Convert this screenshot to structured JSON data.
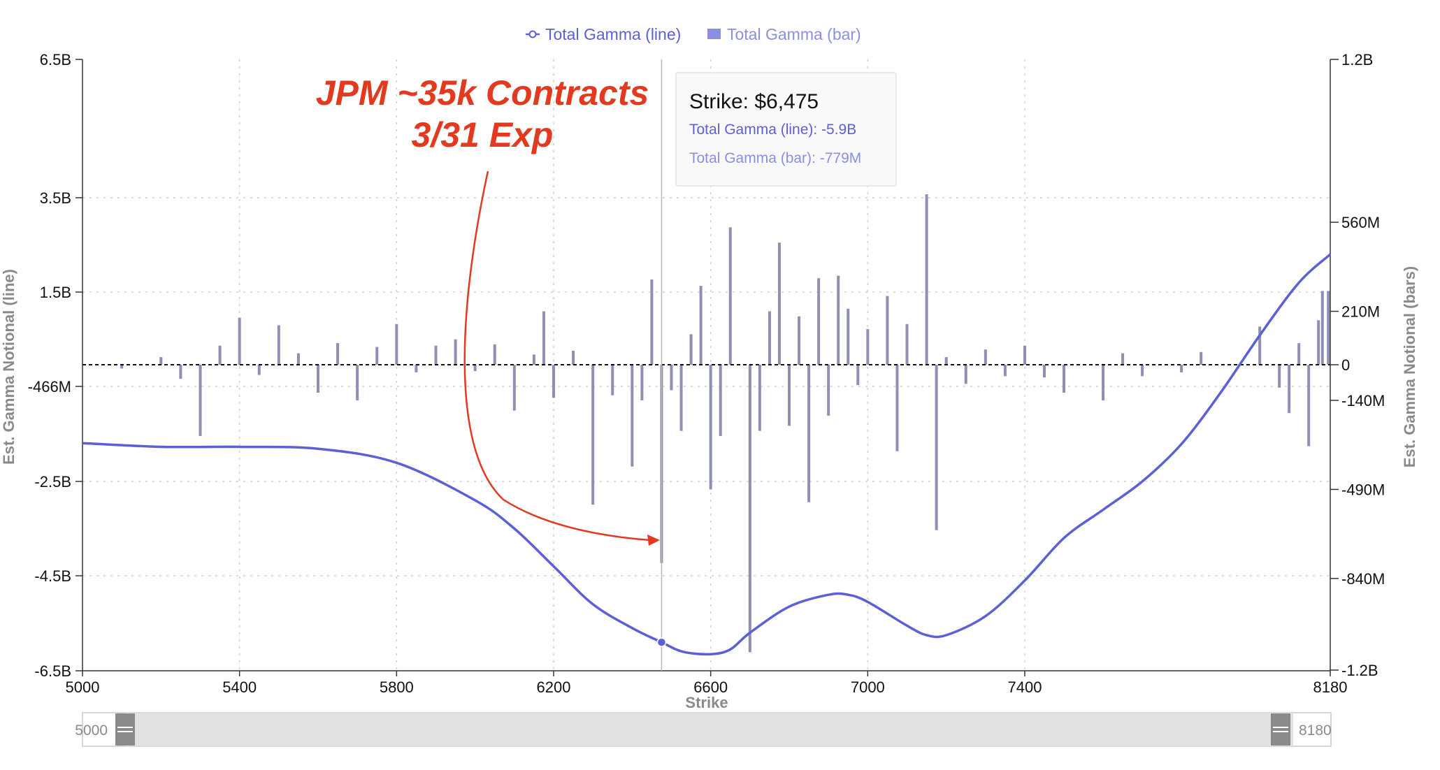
{
  "legend": {
    "line_label": "Total Gamma (line)",
    "bar_label": "Total Gamma (bar)"
  },
  "colors": {
    "line": "#5c5fd6",
    "bar": "#8f8fb3",
    "bar_legend": "#8b8fe0",
    "annotation": "#e2391f",
    "grid": "#cfcfcf"
  },
  "annotation": {
    "line1": "JPM ~35k Contracts",
    "line2": "3/31 Exp"
  },
  "tooltip": {
    "title": "Strike: $6,475",
    "line_text": "Total Gamma (line): -5.9B",
    "bar_text": "Total Gamma (bar): -779M"
  },
  "slider": {
    "start_label": "5000",
    "end_label": "8180"
  },
  "chart_data": {
    "type": "line+bar",
    "xlabel": "Strike",
    "ylabel_left": "Est. Gamma Notional (line)",
    "ylabel_right": "Est. Gamma Notional (bars)",
    "xlim": [
      5000,
      8180
    ],
    "x_ticks": [
      "5000",
      "5400",
      "5800",
      "6200",
      "6600",
      "7000",
      "7400",
      "8180"
    ],
    "y_left_ticks": [
      {
        "v": 6.5,
        "label": "6.5B"
      },
      {
        "v": 3.5,
        "label": "3.5B"
      },
      {
        "v": 1.5,
        "label": "1.5B"
      },
      {
        "v": -0.466,
        "label": "-466M"
      },
      {
        "v": -2.5,
        "label": "-2.5B"
      },
      {
        "v": -4.5,
        "label": "-4.5B"
      },
      {
        "v": -6.5,
        "label": "-6.5B"
      }
    ],
    "y_right_ticks": [
      {
        "v": 1200,
        "label": "1.2B"
      },
      {
        "v": 560,
        "label": "560M"
      },
      {
        "v": 210,
        "label": "210M"
      },
      {
        "v": 0,
        "label": "0"
      },
      {
        "v": -140,
        "label": "-140M"
      },
      {
        "v": -490,
        "label": "-490M"
      },
      {
        "v": -840,
        "label": "-840M"
      },
      {
        "v": -1200,
        "label": "-1.2B"
      }
    ],
    "grid": true,
    "legend_position": "top-center",
    "highlight": {
      "x": 6475,
      "line_value": -5.9,
      "bar_value": -779
    },
    "series": [
      {
        "name": "Total Gamma (line)",
        "units": "B",
        "axis": "left",
        "points": [
          [
            5000,
            -1.68
          ],
          [
            5200,
            -1.76
          ],
          [
            5400,
            -1.76
          ],
          [
            5600,
            -1.8
          ],
          [
            5800,
            -2.1
          ],
          [
            6000,
            -2.9
          ],
          [
            6100,
            -3.5
          ],
          [
            6200,
            -4.3
          ],
          [
            6300,
            -5.1
          ],
          [
            6400,
            -5.6
          ],
          [
            6475,
            -5.9
          ],
          [
            6530,
            -6.1
          ],
          [
            6600,
            -6.15
          ],
          [
            6650,
            -6.05
          ],
          [
            6700,
            -5.7
          ],
          [
            6800,
            -5.15
          ],
          [
            6900,
            -4.9
          ],
          [
            6950,
            -4.9
          ],
          [
            7000,
            -5.05
          ],
          [
            7100,
            -5.55
          ],
          [
            7150,
            -5.75
          ],
          [
            7200,
            -5.75
          ],
          [
            7300,
            -5.35
          ],
          [
            7400,
            -4.6
          ],
          [
            7500,
            -3.7
          ],
          [
            7600,
            -3.1
          ],
          [
            7700,
            -2.5
          ],
          [
            7800,
            -1.7
          ],
          [
            7900,
            -0.6
          ],
          [
            8000,
            0.6
          ],
          [
            8100,
            1.7
          ],
          [
            8180,
            2.3
          ]
        ]
      },
      {
        "name": "Total Gamma (bar)",
        "units": "M",
        "axis": "right",
        "points": [
          [
            5100,
            -15
          ],
          [
            5200,
            30
          ],
          [
            5250,
            -55
          ],
          [
            5300,
            -280
          ],
          [
            5350,
            75
          ],
          [
            5400,
            185
          ],
          [
            5450,
            -40
          ],
          [
            5500,
            155
          ],
          [
            5550,
            45
          ],
          [
            5600,
            -110
          ],
          [
            5650,
            85
          ],
          [
            5700,
            -140
          ],
          [
            5750,
            70
          ],
          [
            5800,
            160
          ],
          [
            5850,
            -30
          ],
          [
            5900,
            75
          ],
          [
            5950,
            100
          ],
          [
            6000,
            -25
          ],
          [
            6050,
            80
          ],
          [
            6100,
            -180
          ],
          [
            6150,
            40
          ],
          [
            6175,
            210
          ],
          [
            6200,
            -130
          ],
          [
            6250,
            55
          ],
          [
            6300,
            -550
          ],
          [
            6350,
            -120
          ],
          [
            6400,
            -400
          ],
          [
            6425,
            -140
          ],
          [
            6450,
            335
          ],
          [
            6475,
            -779
          ],
          [
            6500,
            -100
          ],
          [
            6525,
            -260
          ],
          [
            6550,
            120
          ],
          [
            6575,
            310
          ],
          [
            6600,
            -490
          ],
          [
            6625,
            -280
          ],
          [
            6650,
            540
          ],
          [
            6700,
            -1130
          ],
          [
            6725,
            -260
          ],
          [
            6750,
            210
          ],
          [
            6775,
            480
          ],
          [
            6800,
            -240
          ],
          [
            6825,
            190
          ],
          [
            6850,
            -540
          ],
          [
            6875,
            340
          ],
          [
            6900,
            -200
          ],
          [
            6925,
            350
          ],
          [
            6950,
            220
          ],
          [
            6975,
            -80
          ],
          [
            7000,
            140
          ],
          [
            7050,
            270
          ],
          [
            7075,
            -340
          ],
          [
            7100,
            160
          ],
          [
            7150,
            670
          ],
          [
            7175,
            -650
          ],
          [
            7200,
            30
          ],
          [
            7250,
            -75
          ],
          [
            7300,
            60
          ],
          [
            7350,
            -45
          ],
          [
            7400,
            75
          ],
          [
            7450,
            -50
          ],
          [
            7500,
            -110
          ],
          [
            7600,
            -140
          ],
          [
            7650,
            45
          ],
          [
            7700,
            -45
          ],
          [
            7800,
            -30
          ],
          [
            7850,
            50
          ],
          [
            8000,
            150
          ],
          [
            8050,
            -90
          ],
          [
            8075,
            -190
          ],
          [
            8100,
            85
          ],
          [
            8125,
            -320
          ],
          [
            8150,
            175
          ],
          [
            8160,
            290
          ],
          [
            8175,
            290
          ]
        ]
      }
    ]
  }
}
